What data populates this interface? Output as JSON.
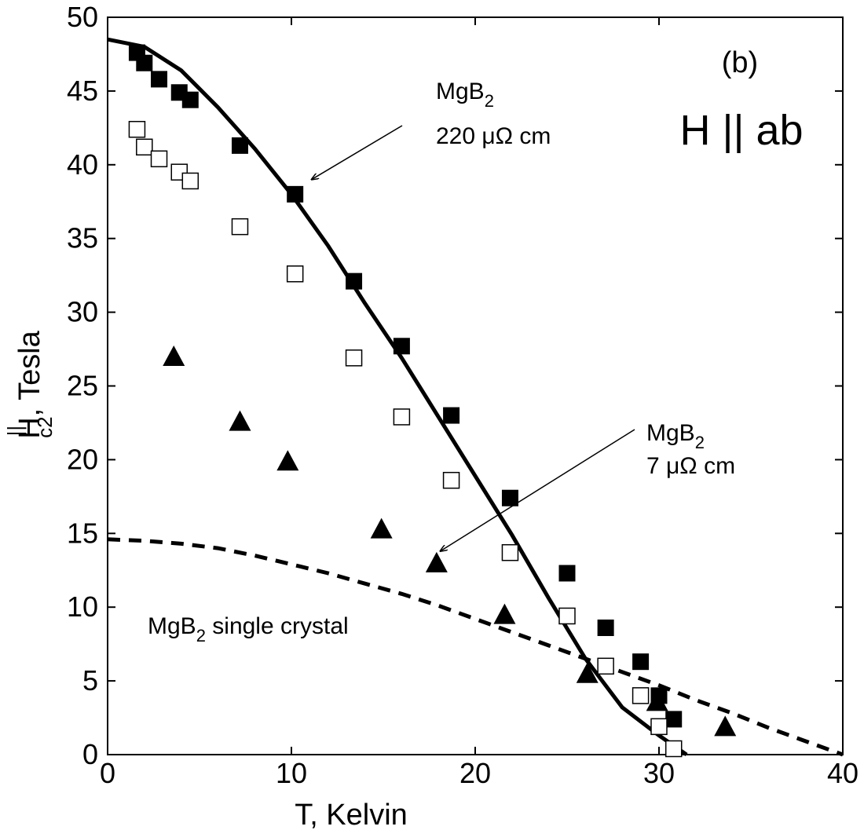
{
  "chart_data": {
    "type": "scatter",
    "xlabel": "T, Kelvin",
    "ylabel_parts": {
      "base": "H",
      "sup": "||",
      "sub": "c2",
      "rest": ", Tesla"
    },
    "xlim": [
      0,
      40
    ],
    "ylim": [
      0,
      50
    ],
    "xticks": [
      0,
      10,
      20,
      30,
      40
    ],
    "yticks": [
      0,
      5,
      10,
      15,
      20,
      25,
      30,
      35,
      40,
      45,
      50
    ],
    "grid": false,
    "panel_label": "(b)",
    "field_label": "H || ab",
    "series": [
      {
        "marker": "filled-square",
        "x": [
          1.6,
          2.0,
          2.8,
          3.9,
          4.5,
          7.2,
          10.2,
          13.4,
          16.0,
          18.7,
          21.9,
          25.0,
          27.1,
          29.0,
          30.0,
          30.8
        ],
        "y": [
          47.6,
          46.9,
          45.8,
          44.9,
          44.4,
          41.3,
          38.0,
          32.1,
          27.7,
          23.0,
          17.4,
          12.3,
          8.6,
          6.3,
          4.0,
          2.4
        ]
      },
      {
        "marker": "open-square",
        "x": [
          1.6,
          2.0,
          2.8,
          3.9,
          4.5,
          7.2,
          10.2,
          13.4,
          16.0,
          18.7,
          21.9,
          25.0,
          27.1,
          29.0,
          30.0,
          30.8
        ],
        "y": [
          42.4,
          41.2,
          40.4,
          39.5,
          38.9,
          35.8,
          32.6,
          26.9,
          22.9,
          18.6,
          13.7,
          9.4,
          6.0,
          4.0,
          1.9,
          0.4
        ]
      },
      {
        "marker": "filled-triangle",
        "x": [
          3.6,
          7.2,
          9.8,
          14.9,
          17.9,
          21.6,
          26.1,
          29.9,
          33.6
        ],
        "y": [
          27.0,
          22.6,
          19.9,
          15.3,
          13.0,
          9.5,
          5.5,
          3.6,
          1.9
        ]
      }
    ],
    "curves": [
      {
        "style": "solid",
        "x": [
          0,
          2,
          4,
          6,
          8,
          10,
          12,
          14,
          16,
          18,
          20,
          22,
          24,
          26,
          28,
          30,
          31.5
        ],
        "y": [
          48.5,
          48.0,
          46.4,
          43.9,
          41.1,
          38.0,
          34.5,
          30.6,
          26.9,
          22.9,
          18.9,
          14.9,
          10.6,
          6.5,
          3.2,
          1.3,
          0
        ]
      },
      {
        "style": "dashed",
        "x": [
          0,
          2,
          4,
          6,
          8,
          10,
          12,
          14,
          16,
          18,
          20,
          22,
          24,
          26,
          28,
          30,
          32,
          34,
          36,
          38,
          40
        ],
        "y": [
          14.6,
          14.5,
          14.3,
          14.0,
          13.5,
          12.9,
          12.3,
          11.6,
          10.9,
          10.1,
          9.2,
          8.3,
          7.4,
          6.5,
          5.6,
          4.7,
          3.7,
          2.8,
          1.8,
          0.9,
          0
        ]
      }
    ],
    "annotations": [
      {
        "base": "MgB",
        "sub": "2",
        "line2": "220 μΩ cm",
        "arrow_to": [
          11.1,
          39.0
        ]
      },
      {
        "base": "MgB",
        "sub": "2",
        "line2": "7 μΩ cm",
        "arrow_to": [
          18.1,
          13.8
        ]
      },
      {
        "base": "MgB",
        "sub": "2",
        "rest": " single crystal"
      }
    ]
  }
}
